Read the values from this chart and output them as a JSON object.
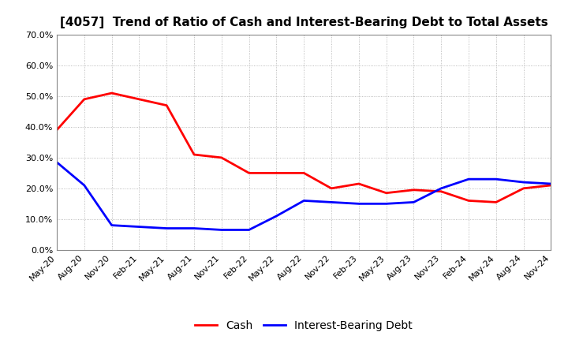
{
  "title": "[4057]  Trend of Ratio of Cash and Interest-Bearing Debt to Total Assets",
  "x_labels": [
    "May-20",
    "Aug-20",
    "Nov-20",
    "Feb-21",
    "May-21",
    "Aug-21",
    "Nov-21",
    "Feb-22",
    "May-22",
    "Aug-22",
    "Nov-22",
    "Feb-23",
    "May-23",
    "Aug-23",
    "Nov-23",
    "Feb-24",
    "May-24",
    "Aug-24",
    "Nov-24"
  ],
  "cash": [
    0.39,
    0.49,
    0.51,
    0.49,
    0.47,
    0.31,
    0.3,
    0.25,
    0.25,
    0.25,
    0.2,
    0.215,
    0.185,
    0.195,
    0.19,
    0.16,
    0.155,
    0.2,
    0.21
  ],
  "ibd": [
    0.285,
    0.21,
    0.08,
    0.075,
    0.07,
    0.07,
    0.065,
    0.065,
    0.11,
    0.16,
    0.155,
    0.15,
    0.15,
    0.155,
    0.2,
    0.23,
    0.23,
    0.22,
    0.215
  ],
  "cash_color": "#ff0000",
  "ibd_color": "#0000ff",
  "ylim": [
    0.0,
    0.7
  ],
  "yticks": [
    0.0,
    0.1,
    0.2,
    0.3,
    0.4,
    0.5,
    0.6,
    0.7
  ],
  "background_color": "#ffffff",
  "plot_bg_color": "#ffffff",
  "grid_color": "#aaaaaa",
  "legend_cash": "Cash",
  "legend_ibd": "Interest-Bearing Debt",
  "title_fontsize": 11,
  "tick_fontsize": 8,
  "linewidth": 2.0
}
